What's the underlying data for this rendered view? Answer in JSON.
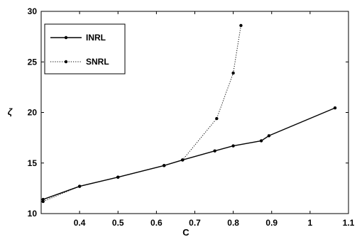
{
  "chart_data": {
    "type": "line",
    "xlabel": "C",
    "ylabel": "ζ",
    "xlim": [
      0.3,
      1.1
    ],
    "ylim": [
      10,
      30
    ],
    "xticks": [
      "0.4",
      "0.5",
      "0.6",
      "0.7",
      "0.8",
      "0.9",
      "1",
      "1.1"
    ],
    "yticks": [
      "10",
      "15",
      "20",
      "25",
      "30"
    ],
    "grid": false,
    "legend_position": "top-left",
    "series": [
      {
        "name": "INRL",
        "style": "solid",
        "color": "#000000",
        "points": [
          {
            "x": 0.305,
            "y": 11.4
          },
          {
            "x": 0.4,
            "y": 12.7
          },
          {
            "x": 0.5,
            "y": 13.6
          },
          {
            "x": 0.62,
            "y": 14.75
          },
          {
            "x": 0.668,
            "y": 15.3
          },
          {
            "x": 0.752,
            "y": 16.2
          },
          {
            "x": 0.8,
            "y": 16.7
          },
          {
            "x": 0.873,
            "y": 17.2
          },
          {
            "x": 0.893,
            "y": 17.7
          },
          {
            "x": 1.065,
            "y": 20.45
          }
        ]
      },
      {
        "name": "SNRL",
        "style": "dotted",
        "color": "#000000",
        "points": [
          {
            "x": 0.305,
            "y": 11.2
          },
          {
            "x": 0.4,
            "y": 12.7
          },
          {
            "x": 0.5,
            "y": 13.6
          },
          {
            "x": 0.62,
            "y": 14.75
          },
          {
            "x": 0.668,
            "y": 15.3
          },
          {
            "x": 0.757,
            "y": 19.4
          },
          {
            "x": 0.8,
            "y": 23.9
          },
          {
            "x": 0.82,
            "y": 28.6
          }
        ]
      }
    ]
  }
}
